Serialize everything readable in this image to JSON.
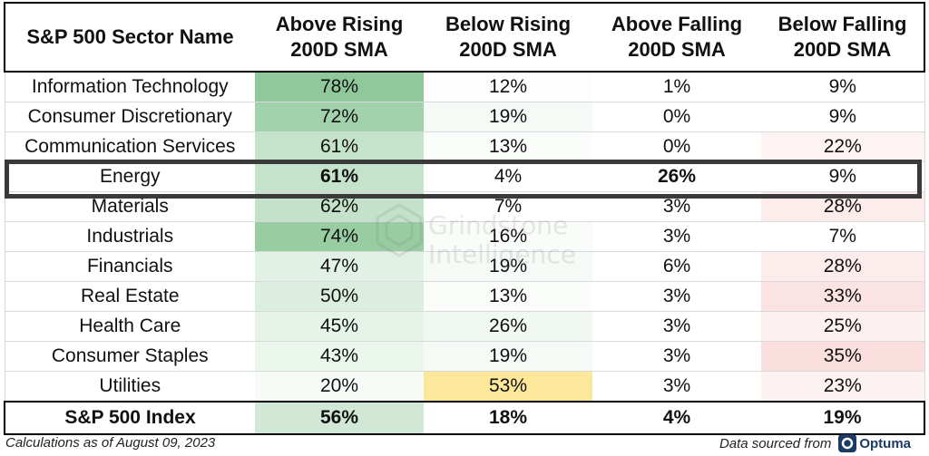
{
  "chart_data": {
    "type": "table",
    "columns": [
      [
        "S&P 500 Sector Name"
      ],
      [
        "Above Rising",
        "200D SMA"
      ],
      [
        "Below Rising",
        "200D SMA"
      ],
      [
        "Above Falling",
        "200D SMA"
      ],
      [
        "Below Falling",
        "200D SMA"
      ]
    ],
    "rows": [
      {
        "name": "Information Technology",
        "values": [
          "78%",
          "12%",
          "1%",
          "9%"
        ],
        "colors": [
          "#8fc99a",
          "#fcfdfc",
          "#ffffff",
          "#ffffff"
        ]
      },
      {
        "name": "Consumer Discretionary",
        "values": [
          "72%",
          "19%",
          "0%",
          "9%"
        ],
        "colors": [
          "#a2d2ab",
          "#f5faf6",
          "#ffffff",
          "#ffffff"
        ]
      },
      {
        "name": "Communication Services",
        "values": [
          "61%",
          "13%",
          "0%",
          "22%"
        ],
        "colors": [
          "#c5e3cb",
          "#fbfdfb",
          "#ffffff",
          "#fdf3f3"
        ]
      },
      {
        "name": "Energy",
        "values": [
          "61%",
          "4%",
          "26%",
          "9%"
        ],
        "colors": [
          "#c5e3cb",
          "#ffffff",
          "#ffffff",
          "#ffffff"
        ]
      },
      {
        "name": "Materials",
        "values": [
          "62%",
          "7%",
          "3%",
          "28%"
        ],
        "colors": [
          "#c3e2c9",
          "#ffffff",
          "#ffffff",
          "#fcecec"
        ]
      },
      {
        "name": "Industrials",
        "values": [
          "74%",
          "16%",
          "3%",
          "7%"
        ],
        "colors": [
          "#98cda2",
          "#f9fcf9",
          "#ffffff",
          "#ffffff"
        ]
      },
      {
        "name": "Financials",
        "values": [
          "47%",
          "19%",
          "6%",
          "28%"
        ],
        "colors": [
          "#e2f1e5",
          "#f5faf6",
          "#ffffff",
          "#fcecec"
        ]
      },
      {
        "name": "Real Estate",
        "values": [
          "50%",
          "13%",
          "3%",
          "33%"
        ],
        "colors": [
          "#dceedf",
          "#fbfdfb",
          "#ffffff",
          "#fbe3e3"
        ]
      },
      {
        "name": "Health Care",
        "values": [
          "45%",
          "26%",
          "3%",
          "25%"
        ],
        "colors": [
          "#e6f3e8",
          "#f1f8f2",
          "#ffffff",
          "#fdf0f0"
        ]
      },
      {
        "name": "Consumer Staples",
        "values": [
          "43%",
          "19%",
          "3%",
          "35%"
        ],
        "colors": [
          "#eaf5ec",
          "#f5faf6",
          "#ffffff",
          "#fbdfdf"
        ]
      },
      {
        "name": "Utilities",
        "values": [
          "20%",
          "53%",
          "3%",
          "23%"
        ],
        "colors": [
          "#f7fbf8",
          "#fde79a",
          "#ffffff",
          "#fdf2f2"
        ]
      }
    ],
    "total": {
      "name": "S&P 500 Index",
      "values": [
        "56%",
        "18%",
        "4%",
        "19%"
      ],
      "colors": [
        "#d0e8d5",
        "#ffffff",
        "#ffffff",
        "#ffffff"
      ]
    },
    "highlighted_row": "Energy",
    "bold_cells": [
      {
        "row": "Energy",
        "col": 0
      },
      {
        "row": "Energy",
        "col": 2
      }
    ]
  },
  "footer": {
    "note": "Calculations as of August 09, 2023",
    "source_prefix": "Data sourced from",
    "source_brand": "Optuma"
  },
  "watermark": {
    "line1": "Grindstone",
    "line2": "Intelligence"
  }
}
